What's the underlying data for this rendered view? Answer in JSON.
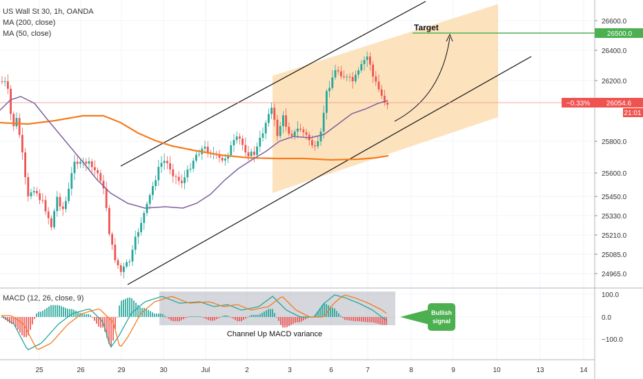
{
  "header": {
    "symbol": "US Wall St 30, 1h, OANDA",
    "ma200": "MA (200, close)",
    "ma50": "MA (50, close)",
    "macd": "MACD (12, 26, close, 9)"
  },
  "annotations": {
    "target": "Target",
    "channel_macd": "Channel Up MACD variance",
    "bullish_signal_line1": "Bullish",
    "bullish_signal_line2": "signal"
  },
  "price_axis": {
    "ticks": [
      "26600.0",
      "26400.0",
      "26200.0",
      "25800.0",
      "25600.0",
      "25450.0",
      "25330.0",
      "25210.0",
      "25085.0",
      "24965.0"
    ],
    "target_label": "26500.0",
    "current_change": "−0.33%",
    "current_price": "26054.6",
    "countdown": "21:01"
  },
  "macd_axis": {
    "ticks": [
      "100.0",
      "0.0",
      "−100.0"
    ]
  },
  "time_axis": {
    "ticks": [
      "25",
      "26",
      "29",
      "30",
      "Jul",
      "2",
      "3",
      "6",
      "7",
      "8",
      "9",
      "10",
      "13",
      "14"
    ]
  },
  "colors": {
    "up": "#26a69a",
    "down": "#ef5350",
    "ma200": "#f57c1f",
    "ma50": "#7e5f9e",
    "target": "#4caf50",
    "channel_fill": "#fbd9a8",
    "price_line": "#f28b82"
  },
  "chart_data": {
    "type": "candlestick",
    "title": "US Wall St 30, 1h, OANDA",
    "series": [
      {
        "name": "MA (200, close)"
      },
      {
        "name": "MA (50, close)"
      },
      {
        "name": "MACD (12, 26, close, 9)"
      }
    ],
    "target_level": 26500,
    "last_price": 26054.6,
    "change_pct": -0.33,
    "price_ticks": [
      26600,
      26400,
      26200,
      25800,
      25600,
      25450,
      25330,
      25210,
      25085,
      24965
    ],
    "macd_ticks": [
      100,
      0,
      -100
    ],
    "x_ticks": [
      "25",
      "26",
      "29",
      "30",
      "Jul",
      "2",
      "3",
      "6",
      "7",
      "8",
      "9",
      "10",
      "13",
      "14"
    ]
  }
}
